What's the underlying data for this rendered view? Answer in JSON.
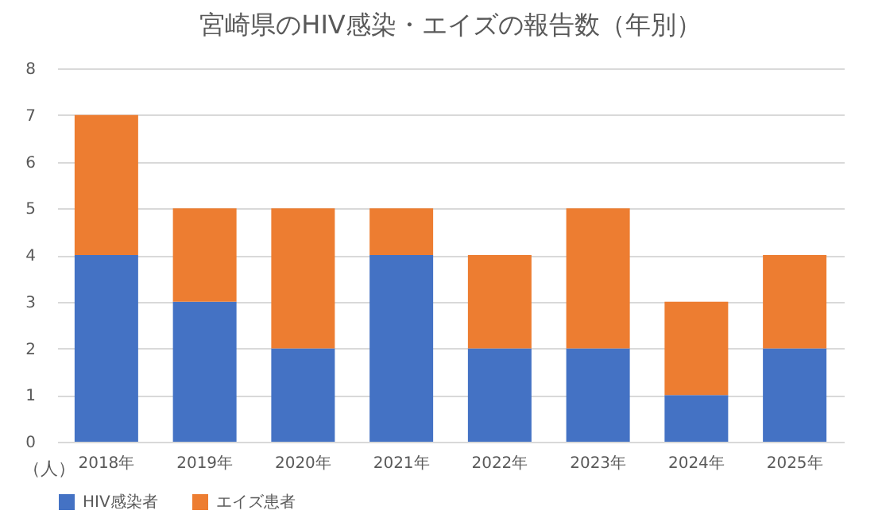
{
  "chart_data": {
    "type": "bar",
    "title": "宮崎県のHIV感染・エイズの報告数（年別）",
    "ylabel": "（人）",
    "categories": [
      "2018年",
      "2019年",
      "2020年",
      "2021年",
      "2022年",
      "2023年",
      "2024年",
      "2025年"
    ],
    "series": [
      {
        "name": "HIV感染者",
        "color": "#4472c4",
        "values": [
          4,
          3,
          2,
          4,
          2,
          2,
          1,
          2
        ]
      },
      {
        "name": "エイズ患者",
        "color": "#ed7d31",
        "values": [
          3,
          2,
          3,
          1,
          2,
          3,
          2,
          2
        ]
      }
    ],
    "stacked": true,
    "ylim": [
      0,
      8
    ],
    "yticks": [
      0,
      1,
      2,
      3,
      4,
      5,
      6,
      7,
      8
    ],
    "grid": "y",
    "legend": "bottom"
  }
}
